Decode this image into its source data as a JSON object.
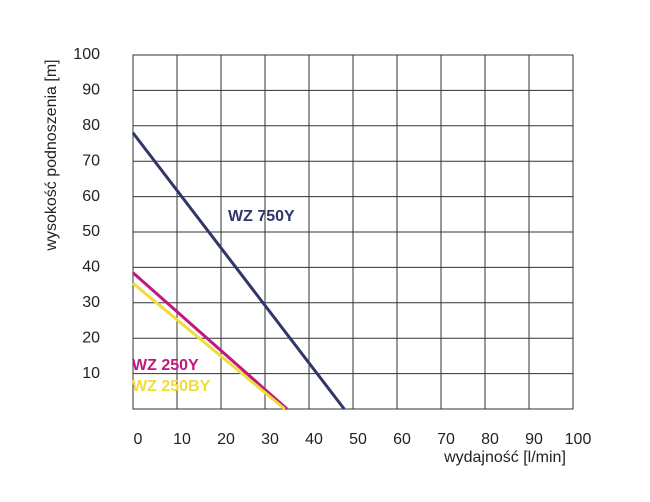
{
  "chart_data": {
    "type": "line",
    "xlabel": "wydajność [l/min]",
    "ylabel": "wysokość podnoszenia [m]",
    "xlim": [
      0,
      100
    ],
    "xticks": [
      0,
      10,
      20,
      30,
      40,
      50,
      60,
      70,
      80,
      90,
      100
    ],
    "ylim": [
      0,
      100
    ],
    "yticks": [
      10,
      20,
      30,
      40,
      50,
      60,
      70,
      80,
      90,
      100
    ],
    "grid": true,
    "series": [
      {
        "name": "WZ 750Y",
        "color": "#2f3668",
        "x": [
          0,
          48
        ],
        "values": [
          78,
          0
        ]
      },
      {
        "name": "WZ 250Y",
        "color": "#c0187f",
        "x": [
          0,
          35
        ],
        "values": [
          38.5,
          0
        ]
      },
      {
        "name": "WZ 250BY",
        "color": "#f0dc3a",
        "x": [
          0,
          34.5
        ],
        "values": [
          35.5,
          0
        ]
      }
    ]
  }
}
